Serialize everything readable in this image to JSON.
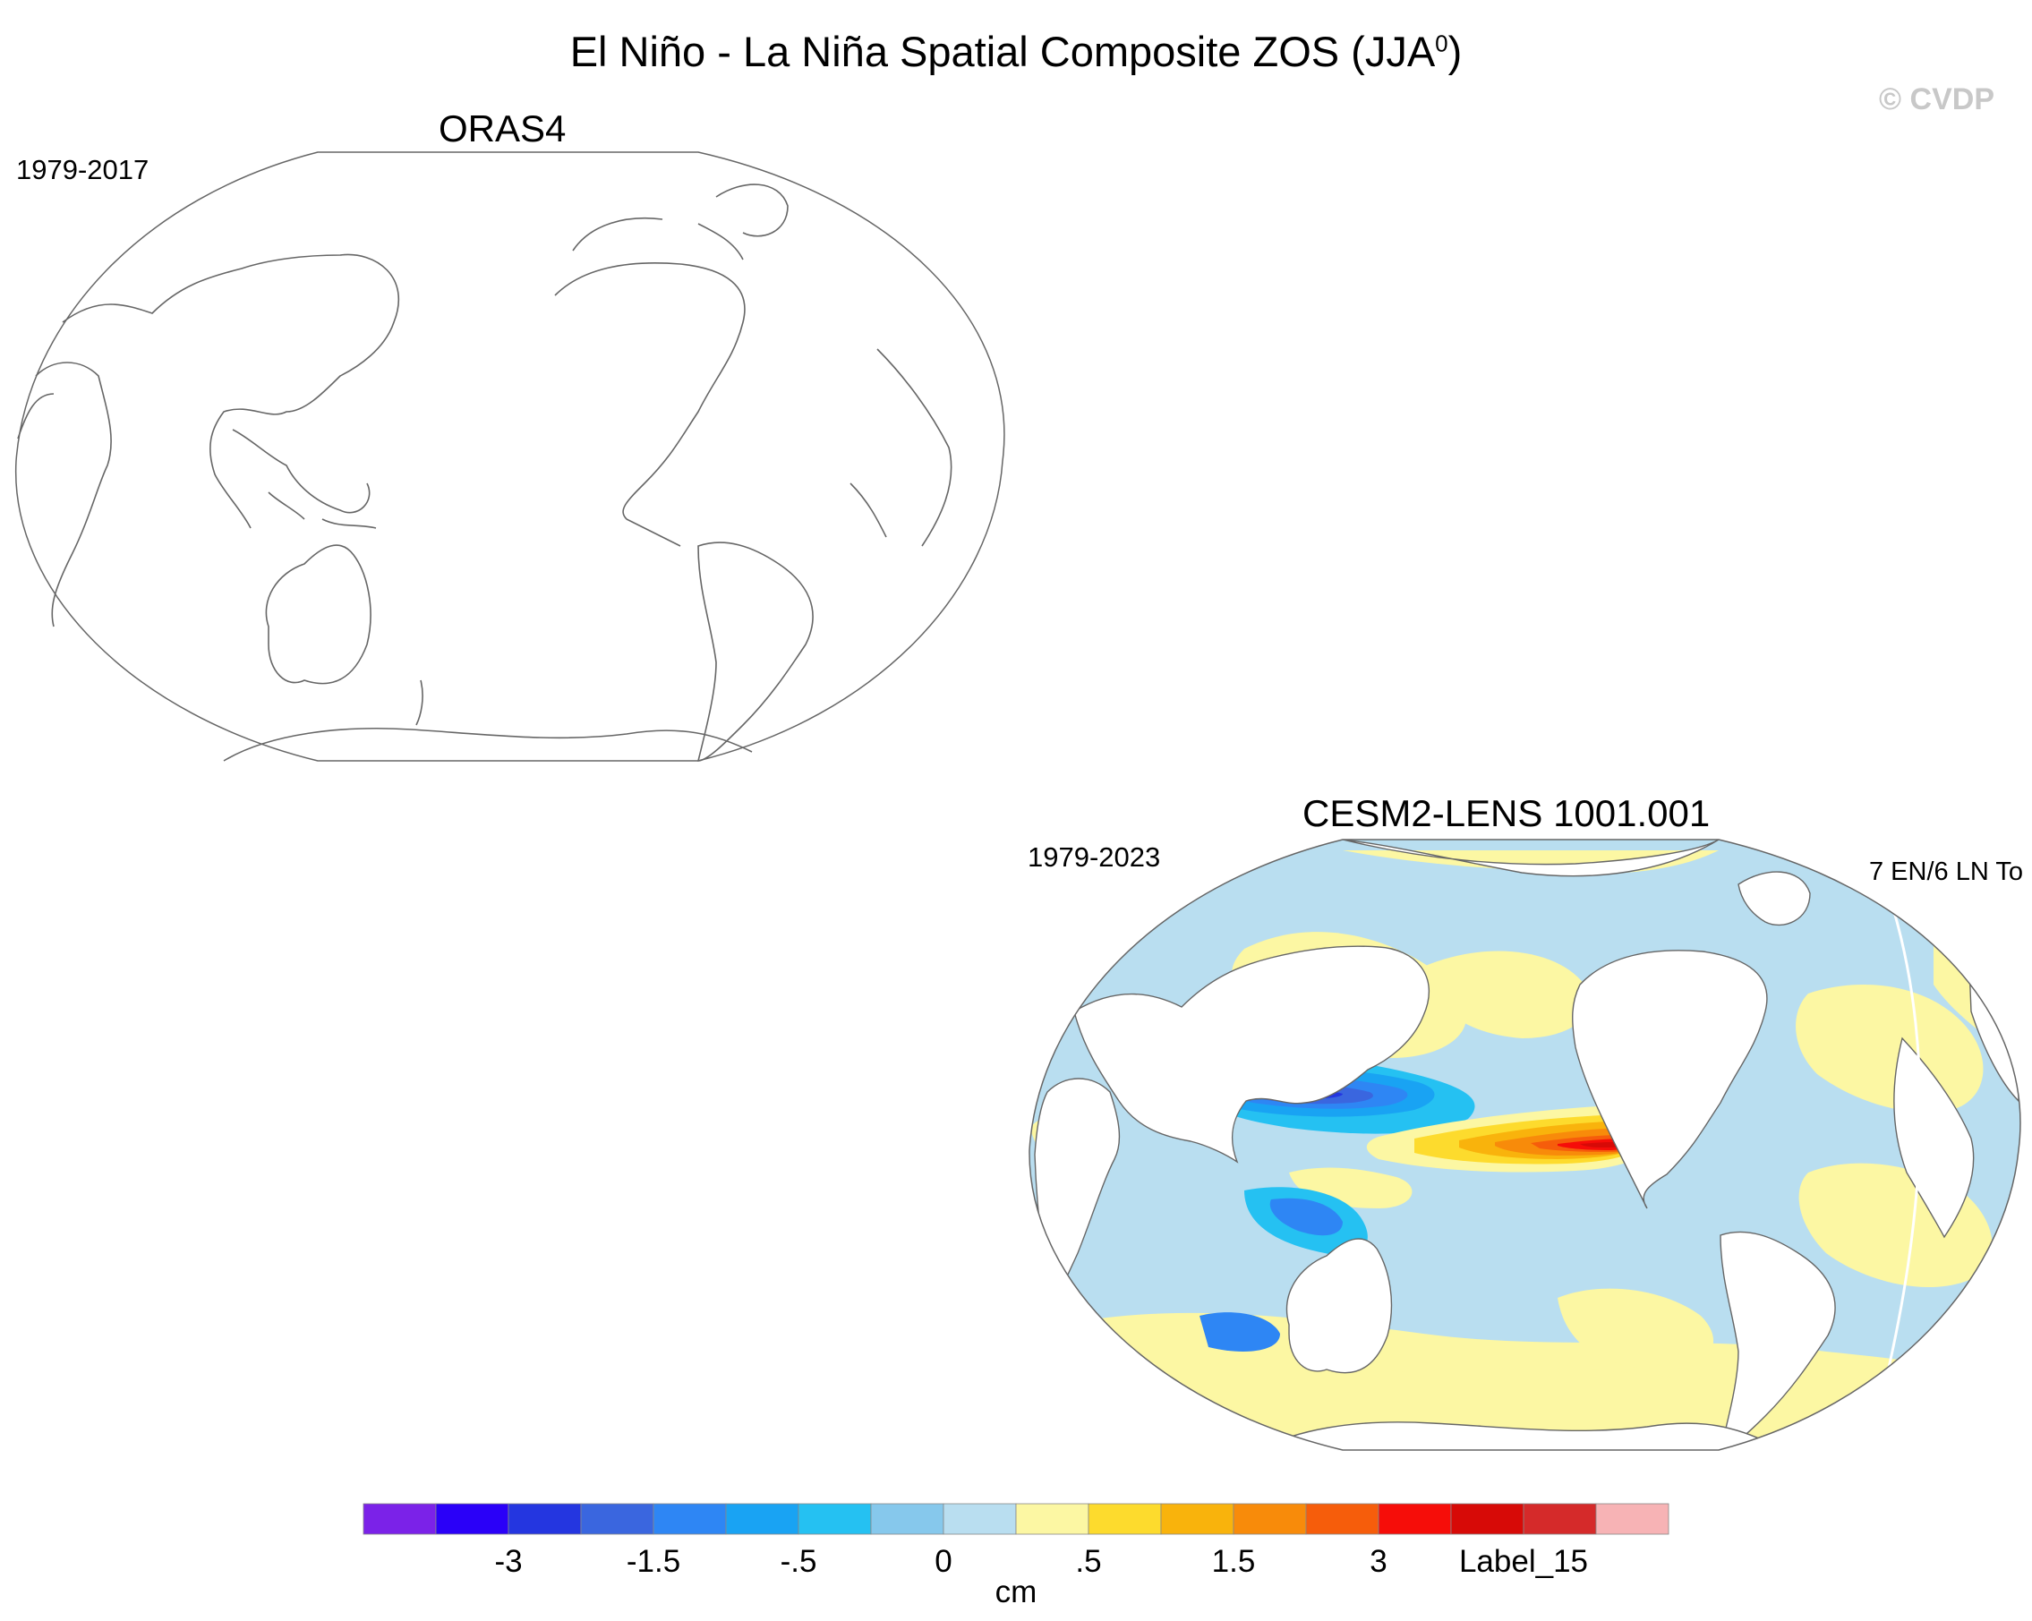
{
  "title": {
    "main": "El Niño - La Niña Spatial Composite ZOS (JJA",
    "superscript": "0",
    "close": ")"
  },
  "copyright": "© CVDP",
  "panels": [
    {
      "title": "ORAS4",
      "period": "1979-2017",
      "counts": "",
      "filled": false
    },
    {
      "title": "CESM2-LENS 1001.001",
      "period": "1979-2023",
      "counts": "7 EN/6 LN To",
      "filled": true
    }
  ],
  "colorbar": {
    "colors": [
      "#7b22e8",
      "#2a00f8",
      "#2436e0",
      "#3a66df",
      "#2e86f4",
      "#19a3f3",
      "#25c1f2",
      "#86c8ec",
      "#b9def0",
      "#fcf7a3",
      "#fddb2d",
      "#f9b30c",
      "#f88b0a",
      "#f65d0b",
      "#f60d09",
      "#d70a07",
      "#d52a2a",
      "#f7b3b5"
    ],
    "labels": [
      "-3",
      "-1.5",
      "-.5",
      "0",
      ".5",
      "1.5",
      "3",
      "Label_15"
    ],
    "units": "cm"
  },
  "colors": {
    "land": "#ffffff",
    "coast": "#666666",
    "neutral_ocean": "#b9def0",
    "positive_ocean": "#fcf7a3"
  }
}
